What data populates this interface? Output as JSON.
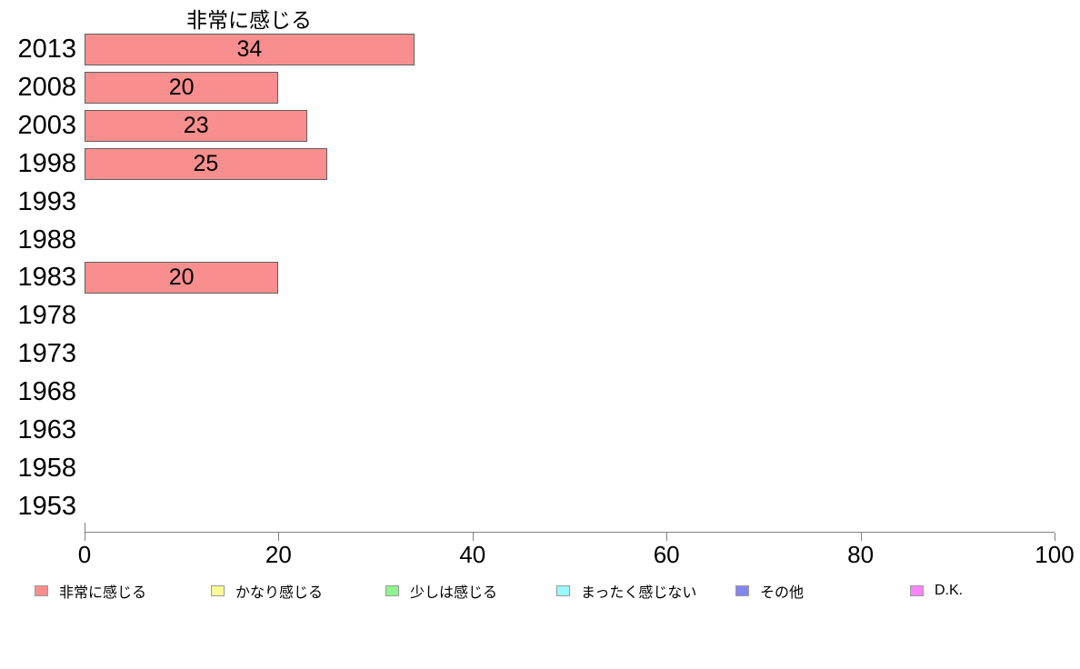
{
  "chart_data": {
    "type": "bar",
    "orientation": "horizontal",
    "title": "非常に感じる",
    "categories": [
      "2013",
      "2008",
      "2003",
      "1998",
      "1993",
      "1988",
      "1983",
      "1978",
      "1973",
      "1968",
      "1963",
      "1958",
      "1953"
    ],
    "values": [
      34,
      20,
      23,
      25,
      null,
      null,
      20,
      null,
      null,
      null,
      null,
      null,
      null
    ],
    "xlabel": "",
    "ylabel": "",
    "xlim": [
      0,
      100
    ],
    "xticks": [
      0,
      20,
      40,
      60,
      80,
      100
    ],
    "grid": false,
    "bar_color": "#f98e8e",
    "bar_border_color": "#606060",
    "axis_color": "#808080",
    "legend_position": "bottom",
    "legend": [
      {
        "label": "非常に感じる",
        "color": "#f98e8e"
      },
      {
        "label": "かなり感じる",
        "color": "#fafa96"
      },
      {
        "label": "少しは感じる",
        "color": "#8df58d"
      },
      {
        "label": "まったく感じない",
        "color": "#96fafa"
      },
      {
        "label": "その他",
        "color": "#8585f0"
      },
      {
        "label": "D.K.",
        "color": "#fa85fa"
      }
    ]
  }
}
